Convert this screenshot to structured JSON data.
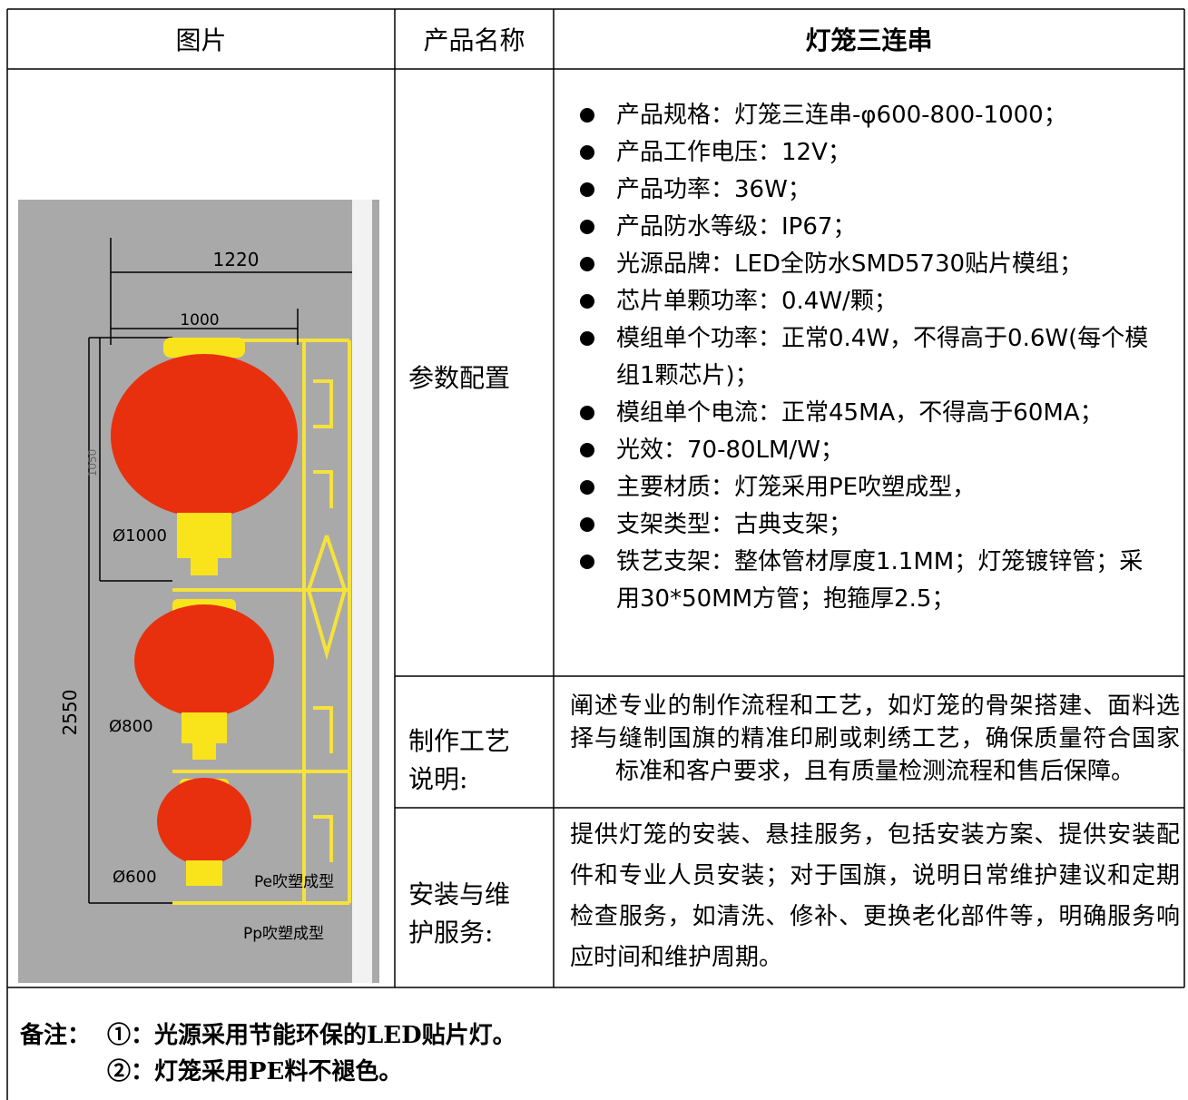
{
  "table": {
    "header": [
      "图片",
      "产品名称",
      "灯笼三连串"
    ],
    "rows": [
      {
        "label": "参数配置",
        "items": [
          "产品规格：灯笼三连串-φ600-800-1000；",
          "产品工作电压：12V；",
          "产品功率：36W；",
          "产品防水等级：IP67；",
          "光源品牌：LED全防水SMD5730贴片模组；",
          "芯片单颗功率：0.4W/颗；",
          "模组单个功率：正常0.4W，不得高于0.6W(每个模组1颗芯片)；",
          "模组单个电流：正常45MA，不得高于60MA；",
          "光效：70-80LM/W；",
          "主要材质：灯笼采用PE吹塑成型，",
          "支架类型：古典支架；",
          "铁艺支架：整体管材厚度1.1MM；灯笼镀锌管；采用30*50MM方管；抱箍厚2.5；"
        ]
      },
      {
        "label": "制作工艺说明:",
        "text": "阐述专业的制作流程和工艺，如灯笼的骨架搭建、面料选择与缝制国旗的精准印刷或刺绣工艺，确保质量符合国家标准和客户要求，且有质量检测流程和售后保障。"
      },
      {
        "label": "安装与维护服务:",
        "text": "提供灯笼的安装、悬挂服务，包括安装方案、提供安装配件和专业人员安装；对于国旗，说明日常维护建议和定期检查服务，如清洗、修补、更换老化部件等，明确服务响应时间和维护周期。"
      }
    ]
  },
  "image_labels": {
    "width_total": "1220",
    "width_top": "1000",
    "height_top": "1050",
    "height_total": "2550",
    "d1": "Ø1000",
    "d2": "Ø800",
    "d3": "Ø600",
    "pe": "Pe吹塑成型",
    "pp": "Pp吹塑成型"
  },
  "notes": {
    "title": "备注：",
    "lines": [
      "①：光源采用节能环保的LED贴片灯。",
      "②：灯笼采用PE料不褪色。"
    ]
  }
}
